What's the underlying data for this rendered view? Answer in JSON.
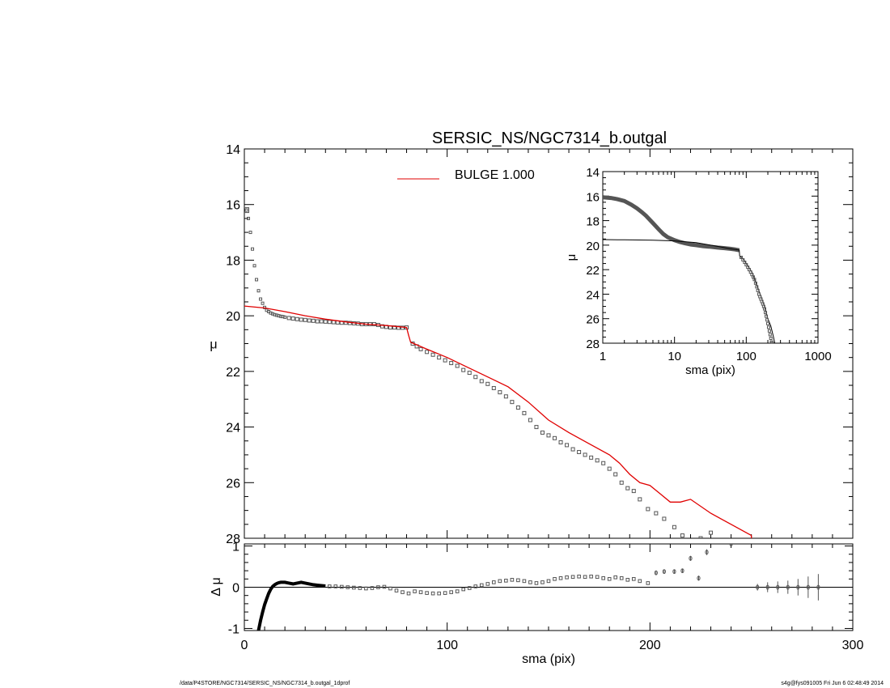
{
  "title": "SERSIC_NS/NGC7314_b.outgal",
  "footer": {
    "left": "/data/P4STORE/NGC7314/SERSIC_NS/NGC7314_b.outgal_1dprof",
    "right": "s4g@fys091005  Fri Jun  6 02:48:49 2014"
  },
  "colors": {
    "model": "#e00000",
    "data": "#555555",
    "axis": "#000000"
  },
  "chart_data": [
    {
      "panel": "main",
      "type": "scatter",
      "title": "SERSIC_NS/NGC7314_b.outgal",
      "xlabel": "",
      "ylabel": "μ",
      "xlim": [
        0,
        300
      ],
      "ylim": [
        28,
        14
      ],
      "y_inverted": true,
      "xticks": [
        "0",
        "100",
        "200",
        "300"
      ],
      "yticks": [
        "14",
        "16",
        "18",
        "20",
        "22",
        "24",
        "26",
        "28"
      ],
      "legend": {
        "label": "BULGE  1.000",
        "color": "#e00000",
        "placement": "top-center"
      },
      "series": [
        {
          "name": "BULGE  1.000",
          "kind": "line",
          "color": "#e00000",
          "x": [
            0,
            10,
            20,
            30,
            40,
            50,
            60,
            70,
            80,
            81,
            82,
            90,
            100,
            110,
            120,
            130,
            140,
            150,
            160,
            170,
            180,
            185,
            190,
            195,
            200,
            205,
            210,
            215,
            220,
            230,
            240,
            250
          ],
          "y": [
            19.65,
            19.72,
            19.85,
            20.0,
            20.12,
            20.22,
            20.3,
            20.35,
            20.42,
            20.7,
            20.95,
            21.2,
            21.5,
            21.85,
            22.2,
            22.55,
            23.1,
            23.75,
            24.2,
            24.6,
            25.0,
            25.3,
            25.7,
            26.0,
            26.1,
            26.4,
            26.7,
            26.7,
            26.6,
            27.1,
            27.5,
            27.9
          ]
        },
        {
          "name": "",
          "kind": "points",
          "color": "#555555",
          "x": [
            1,
            2,
            3,
            4,
            5,
            6,
            7,
            8,
            9,
            10,
            11,
            12,
            13,
            14,
            15,
            16,
            17,
            18,
            19,
            20,
            22,
            24,
            26,
            28,
            30,
            32,
            34,
            36,
            38,
            40,
            42,
            44,
            46,
            48,
            50,
            52,
            54,
            56,
            58,
            60,
            62,
            64,
            66,
            68,
            70,
            72,
            74,
            76,
            78,
            80,
            83,
            85,
            87,
            90,
            93,
            96,
            99,
            102,
            105,
            108,
            111,
            114,
            117,
            120,
            123,
            126,
            129,
            132,
            135,
            138,
            141,
            144,
            147,
            150,
            153,
            156,
            159,
            162,
            165,
            168,
            171,
            174,
            177,
            180,
            183,
            186,
            189,
            192,
            195,
            199,
            203,
            207,
            212,
            216,
            220,
            225,
            230
          ],
          "y": [
            16.2,
            16.5,
            17.0,
            17.6,
            18.2,
            18.7,
            19.1,
            19.4,
            19.55,
            19.7,
            19.8,
            19.85,
            19.9,
            19.93,
            19.96,
            19.98,
            20.0,
            20.02,
            20.03,
            20.05,
            20.08,
            20.1,
            20.12,
            20.14,
            20.15,
            20.17,
            20.18,
            20.2,
            20.2,
            20.21,
            20.22,
            20.23,
            20.24,
            20.25,
            20.25,
            20.26,
            20.27,
            20.28,
            20.3,
            20.3,
            20.3,
            20.3,
            20.33,
            20.38,
            20.4,
            20.42,
            20.42,
            20.43,
            20.43,
            20.42,
            21.0,
            21.1,
            21.2,
            21.3,
            21.4,
            21.5,
            21.6,
            21.7,
            21.8,
            21.95,
            22.05,
            22.2,
            22.35,
            22.45,
            22.6,
            22.75,
            22.9,
            23.1,
            23.3,
            23.5,
            23.75,
            24.0,
            24.2,
            24.3,
            24.4,
            24.55,
            24.65,
            24.8,
            24.9,
            25.0,
            25.1,
            25.2,
            25.3,
            25.5,
            25.7,
            26.0,
            26.2,
            26.3,
            26.6,
            26.95,
            27.1,
            27.3,
            27.6,
            27.9,
            28.3,
            28.0,
            27.8
          ]
        }
      ]
    },
    {
      "panel": "residual",
      "type": "scatter",
      "xlabel": "sma (pix)",
      "ylabel": "Δ μ",
      "xlim": [
        0,
        300
      ],
      "ylim": [
        -1.05,
        1.05
      ],
      "xticks": [
        "0",
        "100",
        "200",
        "300"
      ],
      "yticks": [
        "-1",
        "0",
        "1"
      ],
      "zero_line": true,
      "series": [
        {
          "name": "",
          "kind": "thick-line",
          "color": "#000000",
          "x": [
            7,
            8,
            9,
            10,
            11,
            12,
            13,
            14,
            15,
            16,
            17,
            18,
            19,
            20,
            22,
            24,
            26,
            28,
            30,
            32,
            34,
            36,
            38,
            40
          ],
          "y": [
            -1.05,
            -0.8,
            -0.6,
            -0.42,
            -0.28,
            -0.15,
            -0.05,
            0.02,
            0.06,
            0.09,
            0.11,
            0.12,
            0.12,
            0.12,
            0.1,
            0.08,
            0.1,
            0.12,
            0.1,
            0.08,
            0.06,
            0.05,
            0.04,
            0.03
          ]
        },
        {
          "name": "",
          "kind": "points",
          "color": "#555555",
          "x": [
            42,
            45,
            48,
            51,
            54,
            57,
            60,
            63,
            66,
            69,
            72,
            75,
            78,
            81,
            84,
            87,
            90,
            93,
            96,
            99,
            102,
            105,
            108,
            111,
            114,
            117,
            120,
            123,
            126,
            129,
            132,
            135,
            138,
            141,
            144,
            147,
            150,
            153,
            156,
            159,
            162,
            165,
            168,
            171,
            174,
            177,
            180,
            183,
            186,
            189,
            192,
            195,
            199
          ],
          "y": [
            0.02,
            0.02,
            0.01,
            0.0,
            -0.01,
            -0.02,
            -0.03,
            -0.02,
            0.0,
            0.01,
            -0.03,
            -0.08,
            -0.12,
            -0.15,
            -0.1,
            -0.12,
            -0.14,
            -0.15,
            -0.15,
            -0.14,
            -0.12,
            -0.1,
            -0.05,
            -0.02,
            0.02,
            0.05,
            0.08,
            0.12,
            0.15,
            0.16,
            0.18,
            0.17,
            0.15,
            0.12,
            0.1,
            0.12,
            0.15,
            0.2,
            0.22,
            0.24,
            0.25,
            0.26,
            0.25,
            0.26,
            0.25,
            0.22,
            0.2,
            0.24,
            0.22,
            0.18,
            0.2,
            0.15,
            0.1
          ]
        },
        {
          "name": "",
          "kind": "points-with-errorbars",
          "color": "#555555",
          "x": [
            203,
            207,
            212,
            216,
            220,
            224,
            228,
            240,
            253,
            258,
            263,
            268,
            273,
            278,
            283
          ],
          "y": [
            0.35,
            0.38,
            0.38,
            0.4,
            0.7,
            0.22,
            0.85,
            1.05,
            0.0,
            0.0,
            0.0,
            0.0,
            0.0,
            0.0,
            0.0
          ],
          "err": [
            0.04,
            0.04,
            0.05,
            0.05,
            0.06,
            0.06,
            0.07,
            0.05,
            0.08,
            0.12,
            0.14,
            0.16,
            0.2,
            0.26,
            0.32
          ]
        }
      ]
    },
    {
      "panel": "inset",
      "type": "scatter",
      "xlabel": "sma (pix)",
      "ylabel": "μ",
      "xscale": "log",
      "xlim": [
        1,
        1000
      ],
      "ylim": [
        28,
        14
      ],
      "y_inverted": true,
      "xticks": [
        "1",
        "10",
        "100",
        "1000"
      ],
      "yticks": [
        "14",
        "16",
        "18",
        "20",
        "22",
        "24",
        "26",
        "28"
      ],
      "series": [
        {
          "name": "",
          "kind": "thick-line",
          "color": "#555555",
          "x": [
            1,
            1.3,
            1.6,
            2,
            2.5,
            3,
            3.5,
            4,
            5,
            6,
            7,
            8,
            10,
            12,
            14,
            17,
            20,
            25,
            30,
            40,
            50,
            60,
            70,
            80
          ],
          "y": [
            16.1,
            16.15,
            16.25,
            16.4,
            16.7,
            17.0,
            17.3,
            17.6,
            18.2,
            18.7,
            19.1,
            19.35,
            19.6,
            19.75,
            19.85,
            19.95,
            20.0,
            20.08,
            20.12,
            20.2,
            20.25,
            20.3,
            20.35,
            20.42
          ]
        },
        {
          "name": "",
          "kind": "line",
          "color": "#000000",
          "x": [
            1,
            2,
            5,
            10,
            20,
            40,
            60,
            80,
            81,
            90,
            100,
            120,
            150,
            180,
            200,
            220,
            240,
            250
          ],
          "y": [
            19.55,
            19.57,
            19.6,
            19.65,
            19.8,
            20.1,
            20.3,
            20.4,
            20.9,
            21.1,
            21.5,
            22.2,
            23.7,
            25.0,
            26.0,
            26.6,
            27.5,
            28.0
          ]
        },
        {
          "name": "",
          "kind": "points",
          "color": "#555555",
          "x": [
            85,
            90,
            95,
            100,
            105,
            110,
            115,
            120,
            125,
            130,
            135,
            140,
            145,
            150,
            155,
            160,
            165,
            170,
            175,
            180,
            185,
            190,
            195,
            200,
            205,
            210,
            215,
            220,
            225,
            230
          ],
          "y": [
            21.0,
            21.2,
            21.4,
            21.6,
            21.8,
            22.0,
            22.2,
            22.4,
            22.6,
            22.8,
            23.1,
            23.4,
            23.7,
            24.0,
            24.2,
            24.4,
            24.6,
            24.8,
            25.0,
            25.2,
            25.5,
            25.8,
            26.1,
            26.4,
            26.7,
            27.0,
            27.3,
            27.6,
            27.9,
            28.0
          ]
        }
      ]
    }
  ]
}
